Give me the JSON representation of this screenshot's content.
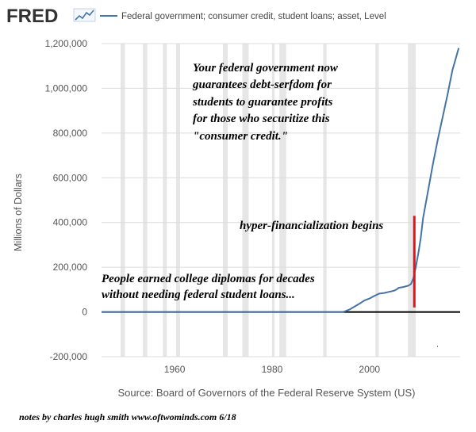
{
  "header": {
    "logo_text": "FRED",
    "legend_label": "Federal government; consumer credit, student loans; asset, Level"
  },
  "colors": {
    "series": "#4572a7",
    "recession": "#e6e6e6",
    "marker": "#e8121a",
    "zero_line": "#000000"
  },
  "chart_data": {
    "type": "line",
    "title": "",
    "xlabel": "",
    "ylabel": "Millions of Dollars",
    "xlim": [
      1945,
      2018.6
    ],
    "ylim": [
      -200000,
      1200000
    ],
    "x_ticks": [
      1960,
      1980,
      2000
    ],
    "y_ticks": [
      -200000,
      0,
      200000,
      400000,
      600000,
      800000,
      1000000,
      1200000
    ],
    "y_tick_labels": [
      "-200,000",
      "0",
      "200,000",
      "400,000",
      "600,000",
      "800,000",
      "1,000,000",
      "1,200,000"
    ],
    "recessions": [
      [
        1948.9,
        1949.8
      ],
      [
        1953.5,
        1954.4
      ],
      [
        1957.6,
        1958.4
      ],
      [
        1960.3,
        1961.1
      ],
      [
        1969.9,
        1970.9
      ],
      [
        1973.9,
        1975.2
      ],
      [
        1980.0,
        1980.5
      ],
      [
        1981.5,
        1982.9
      ],
      [
        1990.5,
        1991.2
      ],
      [
        2001.2,
        2001.9
      ],
      [
        2007.9,
        2009.5
      ]
    ],
    "series": [
      {
        "name": "Federal government; consumer credit, student loans; asset, Level",
        "x": [
          1945,
          1994.5,
          1995,
          1996,
          1997,
          1998,
          1999,
          2000,
          2001,
          2002,
          2003,
          2004,
          2005,
          2005.5,
          2006,
          2007,
          2008,
          2008.5,
          2009,
          2009.5,
          2010,
          2010.5,
          2011,
          2012,
          2013,
          2014,
          2015,
          2016,
          2017,
          2018.3
        ],
        "values": [
          0,
          0,
          3000,
          12000,
          25000,
          38000,
          52000,
          60000,
          72000,
          82000,
          85000,
          90000,
          95000,
          100000,
          108000,
          112000,
          118000,
          125000,
          150000,
          200000,
          260000,
          330000,
          420000,
          540000,
          660000,
          770000,
          870000,
          970000,
          1080000,
          1180000
        ]
      }
    ],
    "annotations": {
      "top_note": [
        "Your federal government now",
        "guarantees debt-serfdom for",
        "students to guarantee profits",
        "for those who securitize this",
        "\"consumer credit.\""
      ],
      "marker_label": "hyper-financialization begins",
      "bottom_note": [
        "People earned college diplomas for decades",
        "without needing federal student loans..."
      ],
      "marker_x": 2009.2,
      "marker_y_range": [
        20000,
        430000
      ]
    },
    "grid": true
  },
  "footer": {
    "source": "Source: Board of Governors of the Federal Reserve System (US)",
    "credits": "notes by charles hugh smith   www.oftwominds.com    6/18"
  }
}
